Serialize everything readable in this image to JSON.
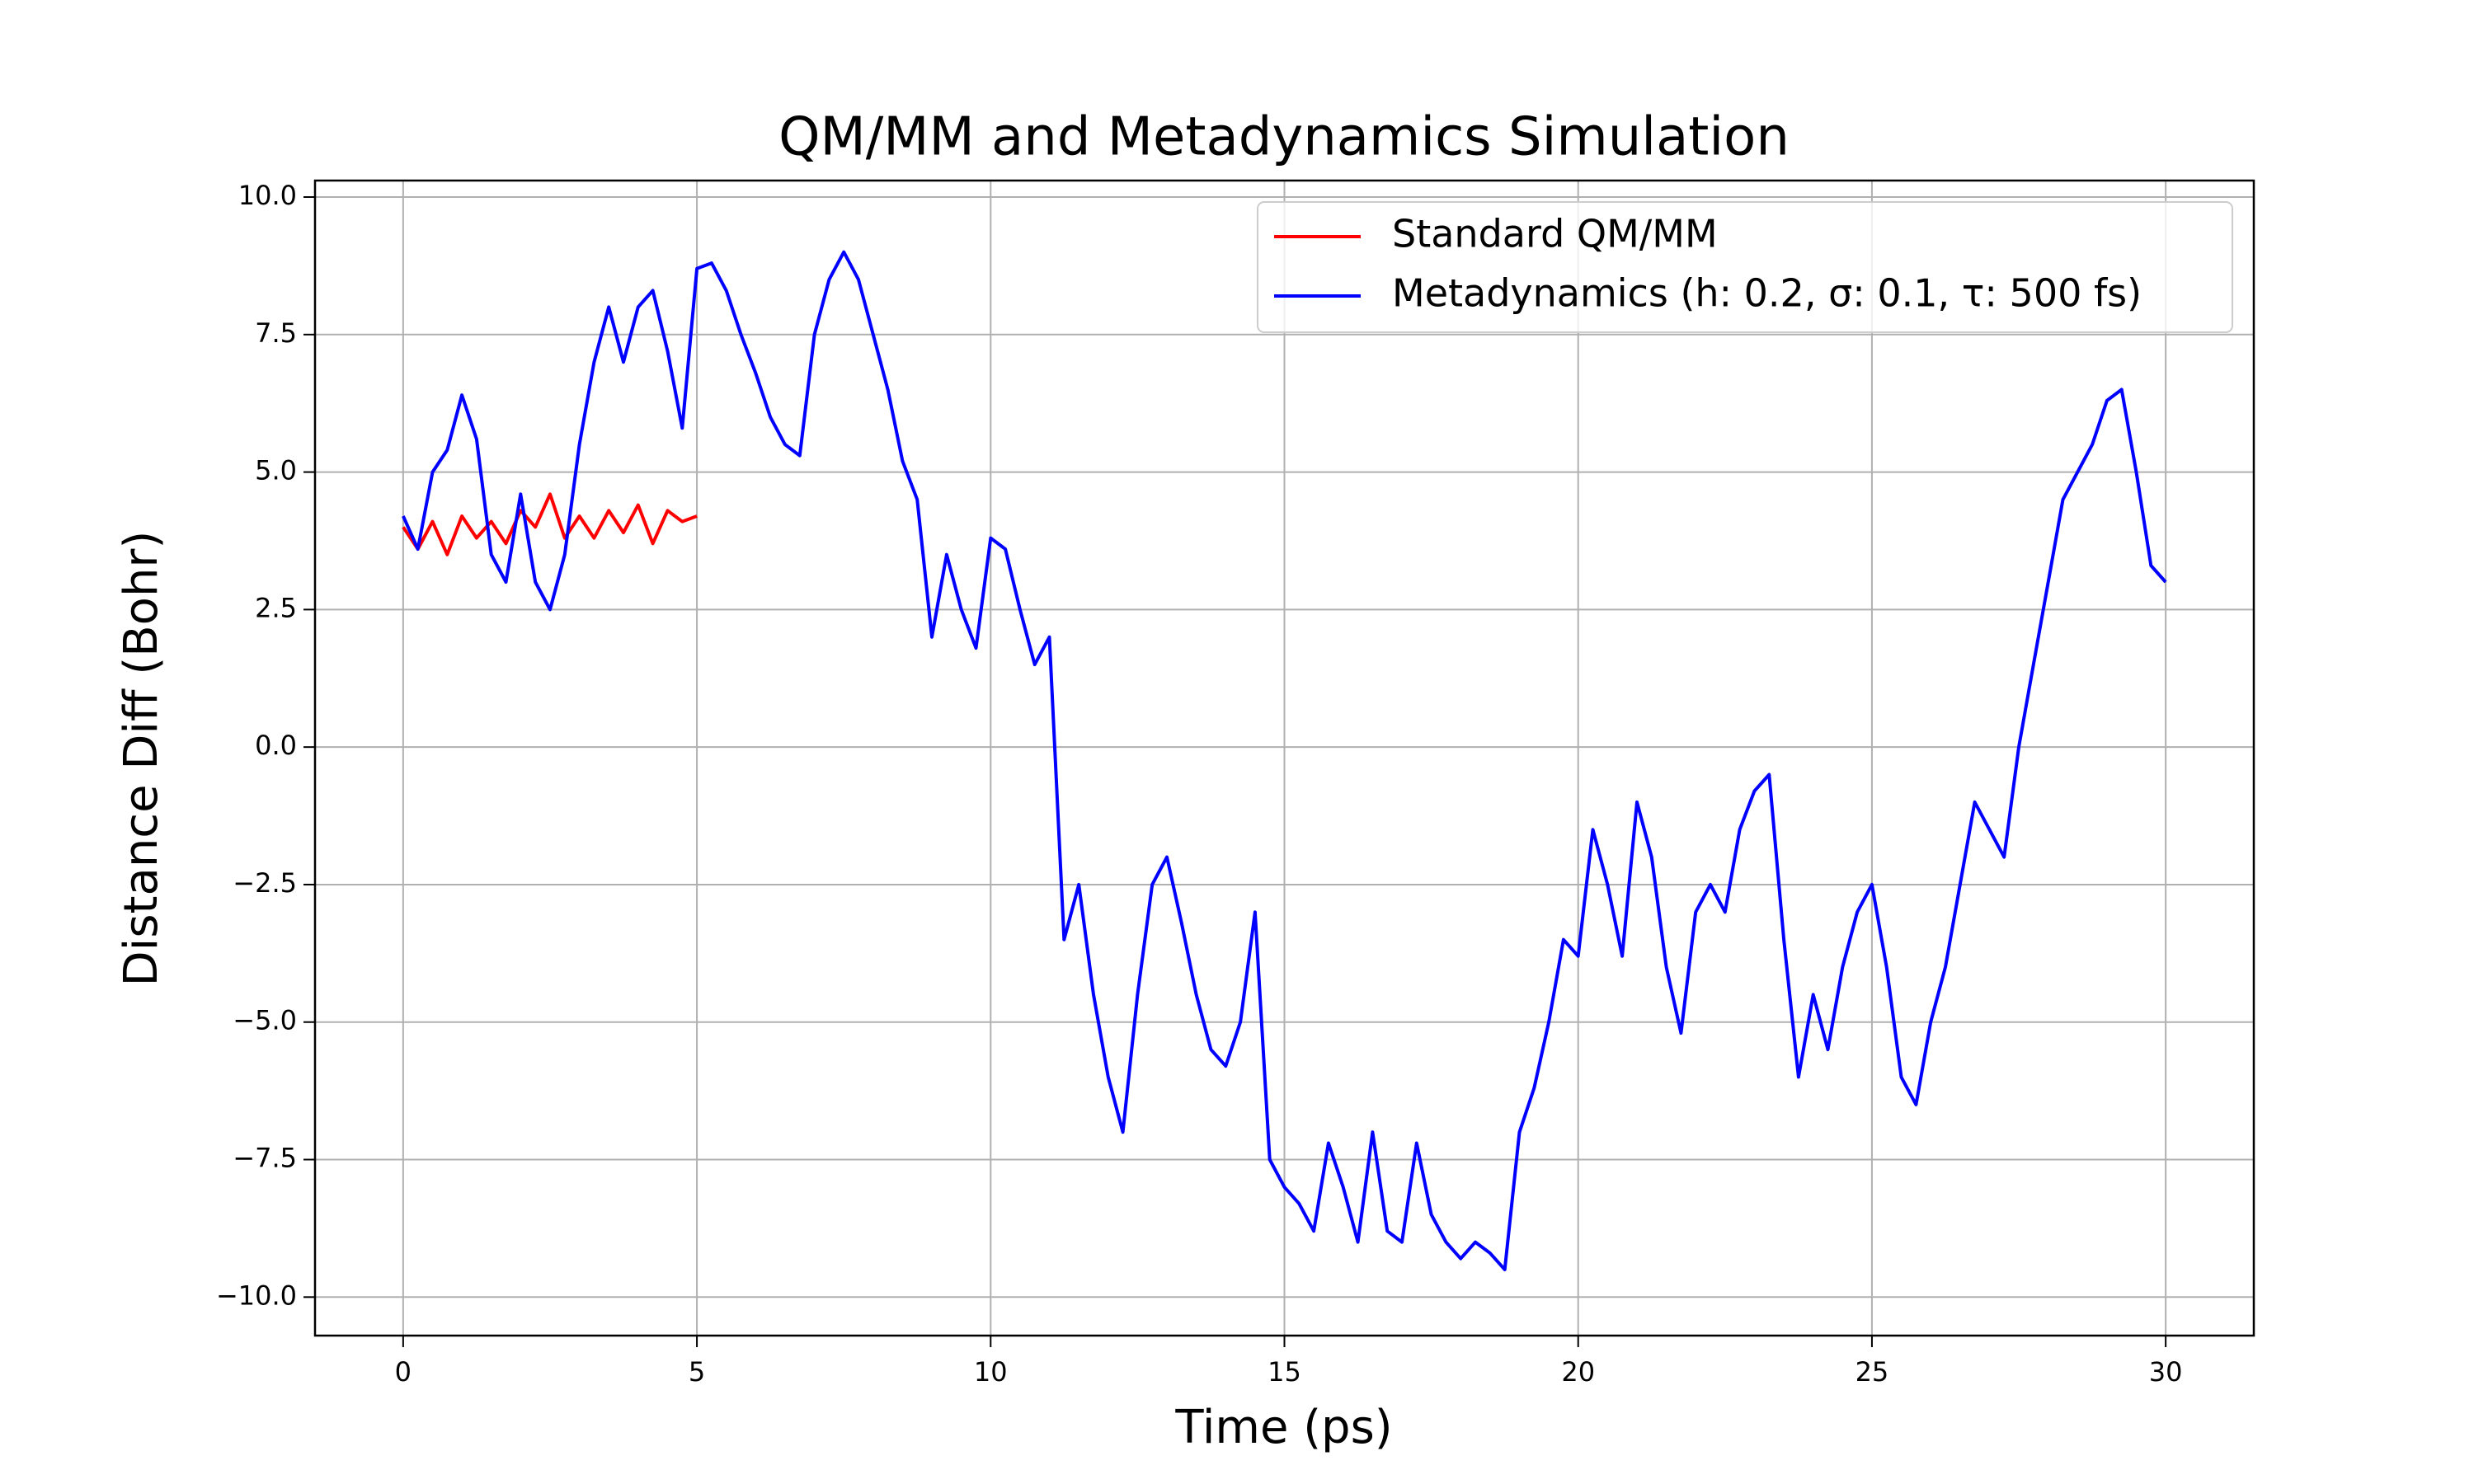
{
  "chart_data": {
    "type": "line",
    "title": "QM/MM and Metadynamics Simulation",
    "x_label": "Time (ps)",
    "y_label": "Distance Diff (Bohr)",
    "xlim": [
      -1.5,
      31.5
    ],
    "ylim": [
      -10.7,
      10.3
    ],
    "xticks": [
      0,
      5,
      10,
      15,
      20,
      25,
      30
    ],
    "yticks": [
      {
        "value": -10,
        "label": "−10.0"
      },
      {
        "value": -7.5,
        "label": "−7.5"
      },
      {
        "value": -5,
        "label": "−5.0"
      },
      {
        "value": -2.5,
        "label": "−2.5"
      },
      {
        "value": 0,
        "label": "0.0"
      },
      {
        "value": 2.5,
        "label": "2.5"
      },
      {
        "value": 5,
        "label": "5.0"
      },
      {
        "value": 7.5,
        "label": "7.5"
      },
      {
        "value": 10,
        "label": "10.0"
      }
    ],
    "grid": true,
    "legend": "upper right",
    "series": [
      {
        "name": "Standard QM/MM",
        "color": "#ff0000",
        "x": [
          0,
          0.25,
          0.5,
          0.75,
          1,
          1.25,
          1.5,
          1.75,
          2,
          2.25,
          2.5,
          2.75,
          3,
          3.25,
          3.5,
          3.75,
          4,
          4.25,
          4.5,
          4.75,
          5
        ],
        "values": [
          4.0,
          3.6,
          4.1,
          3.5,
          4.2,
          3.8,
          4.1,
          3.7,
          4.3,
          4.0,
          4.6,
          3.8,
          4.2,
          3.8,
          4.3,
          3.9,
          4.4,
          3.7,
          4.3,
          4.1,
          4.2
        ]
      },
      {
        "name": "Metadynamics (h: 0.2, σ: 0.1, τ: 500 fs)",
        "color": "#0000ff",
        "x": [
          0,
          0.25,
          0.5,
          0.75,
          1,
          1.25,
          1.5,
          1.75,
          2,
          2.25,
          2.5,
          2.75,
          3,
          3.25,
          3.5,
          3.75,
          4,
          4.25,
          4.5,
          4.75,
          5,
          5.25,
          5.5,
          5.75,
          6,
          6.25,
          6.5,
          6.75,
          7,
          7.25,
          7.5,
          7.75,
          8,
          8.25,
          8.5,
          8.75,
          9,
          9.25,
          9.5,
          9.75,
          10,
          10.25,
          10.5,
          10.75,
          11,
          11.25,
          11.5,
          11.75,
          12,
          12.25,
          12.5,
          12.75,
          13,
          13.25,
          13.5,
          13.75,
          14,
          14.25,
          14.5,
          14.75,
          15,
          15.25,
          15.5,
          15.75,
          16,
          16.25,
          16.5,
          16.75,
          17,
          17.25,
          17.5,
          17.75,
          18,
          18.25,
          18.5,
          18.75,
          19,
          19.25,
          19.5,
          19.75,
          20,
          20.25,
          20.5,
          20.75,
          21,
          21.25,
          21.5,
          21.75,
          22,
          22.25,
          22.5,
          22.75,
          23,
          23.25,
          23.5,
          23.75,
          24,
          24.25,
          24.5,
          24.75,
          25,
          25.25,
          25.5,
          25.75,
          26,
          26.25,
          26.5,
          26.75,
          27,
          27.25,
          27.5,
          27.75,
          28,
          28.25,
          28.5,
          28.75,
          29,
          29.25,
          29.5,
          29.75,
          30
        ],
        "values": [
          4.2,
          3.6,
          5.0,
          5.4,
          6.4,
          5.6,
          3.5,
          3.0,
          4.6,
          3.0,
          2.5,
          3.5,
          5.5,
          7.0,
          8.0,
          7.0,
          8.0,
          8.3,
          7.2,
          5.8,
          8.7,
          8.8,
          8.3,
          7.5,
          6.8,
          6.0,
          5.5,
          5.3,
          7.5,
          8.5,
          9.0,
          8.5,
          7.5,
          6.5,
          5.2,
          4.5,
          2.0,
          3.5,
          2.5,
          1.8,
          3.8,
          3.6,
          2.5,
          1.5,
          2.0,
          -3.5,
          -2.5,
          -4.5,
          -6.0,
          -7.0,
          -4.5,
          -2.5,
          -2.0,
          -3.2,
          -4.5,
          -5.5,
          -5.8,
          -5.0,
          -3.0,
          -7.5,
          -8.0,
          -8.3,
          -8.8,
          -7.2,
          -8.0,
          -9.0,
          -7.0,
          -8.8,
          -9.0,
          -7.2,
          -8.5,
          -9.0,
          -9.3,
          -9.0,
          -9.2,
          -9.5,
          -7.0,
          -6.2,
          -5.0,
          -3.5,
          -3.8,
          -1.5,
          -2.5,
          -3.8,
          -1.0,
          -2.0,
          -4.0,
          -5.2,
          -3.0,
          -2.5,
          -3.0,
          -1.5,
          -0.8,
          -0.5,
          -3.5,
          -6.0,
          -4.5,
          -5.5,
          -4.0,
          -3.0,
          -2.5,
          -4.0,
          -6.0,
          -6.5,
          -5.0,
          -4.0,
          -2.5,
          -1.0,
          -1.5,
          -2.0,
          0.0,
          1.5,
          3.0,
          4.5,
          5.0,
          5.5,
          6.3,
          6.5,
          5.0,
          3.3,
          3.0
        ]
      }
    ]
  }
}
